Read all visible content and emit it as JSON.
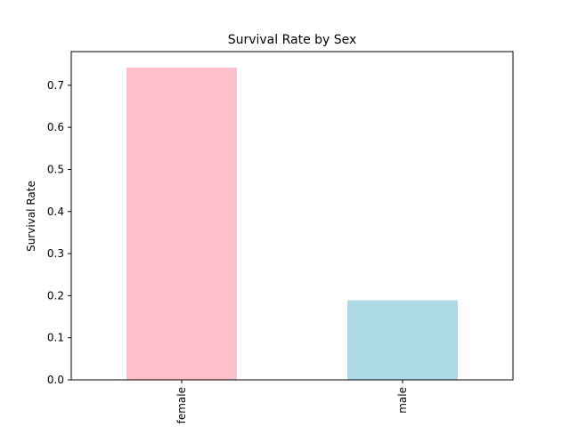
{
  "chart_data": {
    "type": "bar",
    "title": "Survival Rate by Sex",
    "xlabel": "",
    "ylabel": "Survival Rate",
    "categories": [
      "female",
      "male"
    ],
    "values": [
      0.742,
      0.189
    ],
    "colors": [
      "#ffc0cb",
      "#add8e6"
    ],
    "ylim": [
      0,
      0.78
    ],
    "yticks": [
      0.0,
      0.1,
      0.2,
      0.3,
      0.4,
      0.5,
      0.6,
      0.7
    ],
    "ytick_labels": [
      "0.0",
      "0.1",
      "0.2",
      "0.3",
      "0.4",
      "0.5",
      "0.6",
      "0.7"
    ],
    "xtick_rotation": "vertical",
    "grid": false,
    "legend": "none"
  }
}
